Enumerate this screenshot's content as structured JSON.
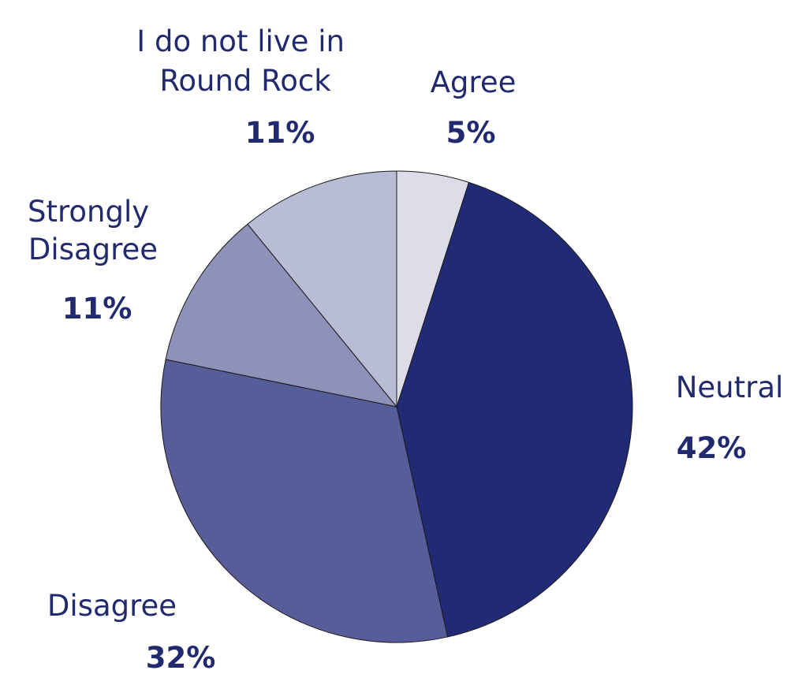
{
  "chart_data": {
    "type": "pie",
    "title": "",
    "slices": [
      {
        "label": "Agree",
        "value": 5,
        "pct_label": "5%",
        "color": "#dddde9"
      },
      {
        "label": "Neutral",
        "value": 42,
        "pct_label": "42%",
        "color": "#212a75"
      },
      {
        "label": "Disagree",
        "value": 32,
        "pct_label": "32%",
        "color": "#575d98"
      },
      {
        "label": "Strongly Disagree",
        "value": 11,
        "pct_label": "11%",
        "color": "#8e92b8"
      },
      {
        "label": "I do not live in Round Rock",
        "value": 11,
        "pct_label": "11%",
        "color": "#b8bcd5"
      }
    ],
    "start": "top",
    "direction": "clockwise",
    "label_color": "#212a6e"
  }
}
